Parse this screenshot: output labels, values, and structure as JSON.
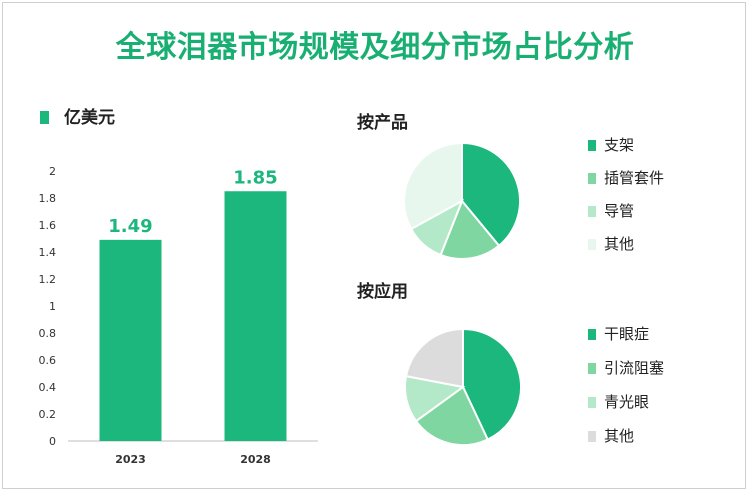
{
  "title": "全球泪器市场规模及细分市场占比分析",
  "chart_data": [
    {
      "type": "bar",
      "unit_legend": "亿美元",
      "categories": [
        "2023",
        "2028"
      ],
      "values": [
        1.49,
        1.85
      ],
      "data_labels": [
        "1.49",
        "1.85"
      ],
      "ylim": [
        0,
        2
      ],
      "yticks": [
        "0",
        "0.2",
        "0.4",
        "0.6",
        "0.8",
        "1",
        "1.2",
        "1.4",
        "1.6",
        "1.8",
        "2"
      ],
      "color": "#1cb77d",
      "grid": false
    },
    {
      "type": "pie",
      "title": "按产品",
      "labels": [
        "支架",
        "插管套件",
        "导管",
        "其他"
      ],
      "values": [
        39,
        17,
        11,
        33
      ],
      "colors": [
        "#1cb77d",
        "#7fd6a0",
        "#b3e8c8",
        "#e8f7ee"
      ]
    },
    {
      "type": "pie",
      "title": "按应用",
      "labels": [
        "干眼症",
        "引流阻塞",
        "青光眼",
        "其他"
      ],
      "values": [
        43,
        22,
        13,
        22
      ],
      "colors": [
        "#1cb77d",
        "#7fd6a0",
        "#b3e8c8",
        "#dcdcdc"
      ]
    }
  ]
}
